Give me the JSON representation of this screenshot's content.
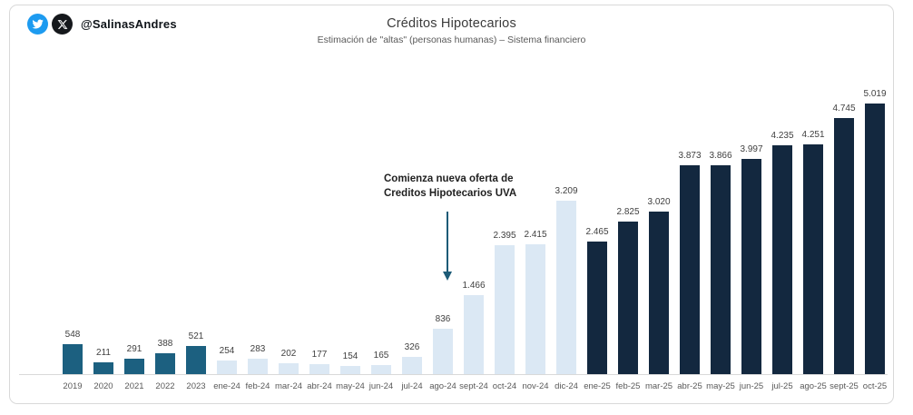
{
  "brand": {
    "handle": "@SalinasAndres"
  },
  "chart_data": {
    "type": "bar",
    "title": "Créditos Hipotecarios",
    "subtitle": "Estimación de \"altas\" (personas humanas)  – Sistema financiero",
    "xlabel": "",
    "ylabel": "",
    "ylim": [
      0,
      5050
    ],
    "grid": false,
    "legend": false,
    "bars": [
      {
        "category": "2019",
        "value": 548,
        "label": "548",
        "group": "year"
      },
      {
        "category": "2020",
        "value": 211,
        "label": "211",
        "group": "year"
      },
      {
        "category": "2021",
        "value": 291,
        "label": "291",
        "group": "year"
      },
      {
        "category": "2022",
        "value": 388,
        "label": "388",
        "group": "year"
      },
      {
        "category": "2023",
        "value": 521,
        "label": "521",
        "group": "year"
      },
      {
        "category": "ene-24",
        "value": 254,
        "label": "254",
        "group": "months2024"
      },
      {
        "category": "feb-24",
        "value": 283,
        "label": "283",
        "group": "months2024"
      },
      {
        "category": "mar-24",
        "value": 202,
        "label": "202",
        "group": "months2024"
      },
      {
        "category": "abr-24",
        "value": 177,
        "label": "177",
        "group": "months2024"
      },
      {
        "category": "may-24",
        "value": 154,
        "label": "154",
        "group": "months2024"
      },
      {
        "category": "jun-24",
        "value": 165,
        "label": "165",
        "group": "months2024"
      },
      {
        "category": "jul-24",
        "value": 326,
        "label": "326",
        "group": "months2024"
      },
      {
        "category": "ago-24",
        "value": 836,
        "label": "836",
        "group": "months2024"
      },
      {
        "category": "sept-24",
        "value": 1466,
        "label": "1.466",
        "group": "months2024"
      },
      {
        "category": "oct-24",
        "value": 2395,
        "label": "2.395",
        "group": "months2024"
      },
      {
        "category": "nov-24",
        "value": 2415,
        "label": "2.415",
        "group": "months2024"
      },
      {
        "category": "dic-24",
        "value": 3209,
        "label": "3.209",
        "group": "months2024"
      },
      {
        "category": "ene-25",
        "value": 2465,
        "label": "2.465",
        "group": "months2025"
      },
      {
        "category": "feb-25",
        "value": 2825,
        "label": "2.825",
        "group": "months2025"
      },
      {
        "category": "mar-25",
        "value": 3020,
        "label": "3.020",
        "group": "months2025"
      },
      {
        "category": "abr-25",
        "value": 3873,
        "label": "3.873",
        "group": "months2025"
      },
      {
        "category": "may-25",
        "value": 3866,
        "label": "3.866",
        "group": "months2025"
      },
      {
        "category": "jun-25",
        "value": 3997,
        "label": "3.997",
        "group": "months2025"
      },
      {
        "category": "jul-25",
        "value": 4235,
        "label": "4.235",
        "group": "months2025"
      },
      {
        "category": "ago-25",
        "value": 4251,
        "label": "4.251",
        "group": "months2025"
      },
      {
        "category": "sept-25",
        "value": 4745,
        "label": "4.745",
        "group": "months2025"
      },
      {
        "category": "oct-25",
        "value": 5019,
        "label": "5.019",
        "group": "months2025"
      }
    ],
    "colors": {
      "year": "#1c6080",
      "months2024": "#dbe8f4",
      "months2025": "#13283f",
      "annotation_arrow": "#1d5b77",
      "axis_line": "#d9d9d9",
      "twitter_blue": "#1d9bf0",
      "x_black": "#15181c"
    },
    "annotation": {
      "line1": "Comienza nueva oferta de",
      "line2": "Creditos Hipotecarios UVA"
    }
  }
}
